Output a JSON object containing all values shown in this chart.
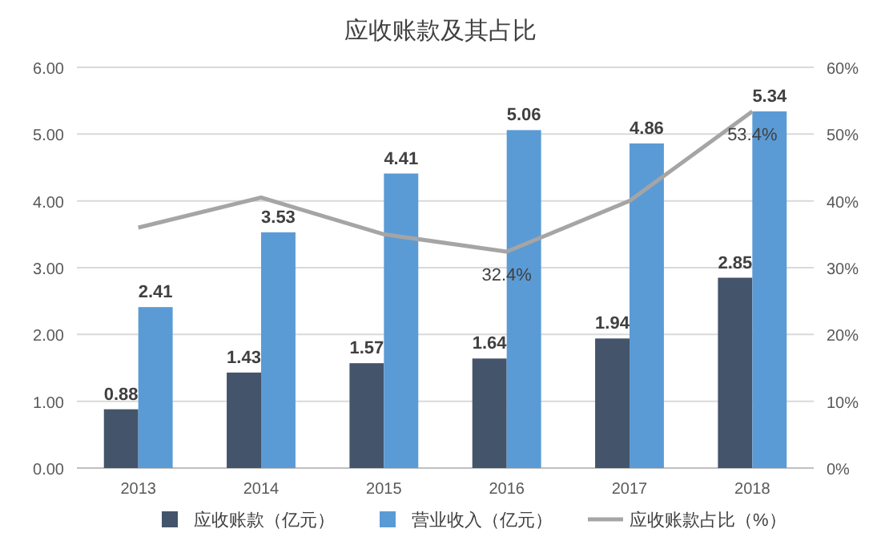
{
  "chart_data": {
    "type": "bar",
    "title": "应收账款及其占比",
    "categories": [
      "2013",
      "2014",
      "2015",
      "2016",
      "2017",
      "2018"
    ],
    "series": [
      {
        "name": "应收账款（亿元）",
        "color": "#44546a",
        "values": [
          0.88,
          1.43,
          1.57,
          1.64,
          1.94,
          2.85
        ]
      },
      {
        "name": "营业收入（亿元）",
        "color": "#5b9bd5",
        "values": [
          2.41,
          3.53,
          4.41,
          5.06,
          4.86,
          5.34
        ]
      },
      {
        "name": "应收账款占比（%）",
        "color": "#a5a5a5",
        "type": "line",
        "axis": "y2",
        "values": [
          36,
          40.5,
          35,
          32.4,
          40,
          53.4
        ],
        "value_labels": [
          null,
          null,
          null,
          "32.4%",
          null,
          "53.4%"
        ]
      }
    ],
    "data_labels": true,
    "ylim": [
      0,
      6
    ],
    "yticks": [
      {
        "value": 0,
        "label": "0.00"
      },
      {
        "value": 1,
        "label": "1.00"
      },
      {
        "value": 2,
        "label": "2.00"
      },
      {
        "value": 3,
        "label": "3.00"
      },
      {
        "value": 4,
        "label": "4.00"
      },
      {
        "value": 5,
        "label": "5.00"
      },
      {
        "value": 6,
        "label": "6.00"
      }
    ],
    "y2lim": [
      0,
      60
    ],
    "y2ticks": [
      {
        "value": 0,
        "label": "0%"
      },
      {
        "value": 10,
        "label": "10%"
      },
      {
        "value": 20,
        "label": "20%"
      },
      {
        "value": 30,
        "label": "30%"
      },
      {
        "value": 40,
        "label": "40%"
      },
      {
        "value": 50,
        "label": "50%"
      },
      {
        "value": 60,
        "label": "60%"
      }
    ],
    "grid": "y",
    "legend": "bottom"
  }
}
